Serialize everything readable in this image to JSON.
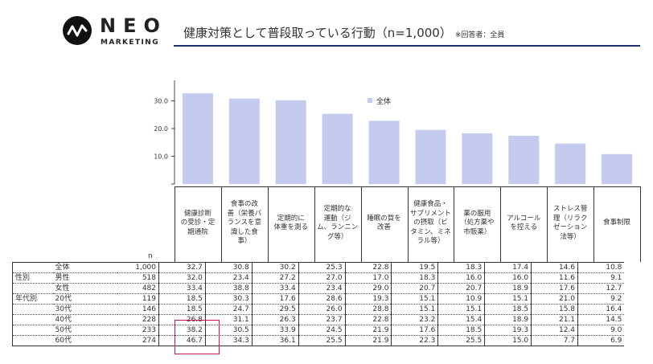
{
  "brand": {
    "name": "NEO",
    "sub": "MARKETING"
  },
  "title": {
    "main": "健康対策として普段取っている行動（n=1,000）",
    "note": "※回答者：全員"
  },
  "colors": {
    "bar": "#c5cbef",
    "highlight": "#c2185b",
    "rule": "#1f2f6f"
  },
  "chart_data": {
    "type": "bar",
    "categories": [
      "健康診断の受診・定期通院",
      "食事の改善（栄養バランスを意識した食事）",
      "定期的に体重を測る",
      "定期的な運動（ジム、ランニング等）",
      "睡眠の質を改善",
      "健康食品・サプリメントの摂取（ビタミン、ミネラル等）",
      "薬の服用（処方薬や市販薬）",
      "アルコールを控える",
      "ストレス管理（リラクゼーション法等）",
      "食事制限"
    ],
    "series": [
      {
        "name": "全体",
        "values": [
          32.7,
          30.8,
          30.2,
          25.3,
          22.8,
          19.5,
          18.3,
          17.4,
          14.6,
          10.8
        ]
      }
    ],
    "yticks": [
      "0.0",
      "10.0",
      "20.0",
      "30.0"
    ],
    "ylim": [
      0,
      35
    ],
    "legend": "全体",
    "legend_position": "top-right"
  },
  "column_labels": [
    "健康診断\nの受診・定\n期通院",
    "食事の改\n善（栄養バ\nランスを意\n識した食\n事）",
    "定期的に\n体重を測る",
    "定期的な\n運動（ジ\nム、ランニン\nグ等）",
    "睡眠の質を\n改善",
    "健康食品・\nサプリメント\nの摂取（ビ\nタミン、ミネ\nラル等）",
    "薬の服用\n（処方薬や\n市販薬）",
    "アルコール\nを控える",
    "ストレス管\n理（リラク\nゼーション\n法等）",
    "食事制限"
  ],
  "n_header": "n",
  "table": {
    "rows": [
      {
        "group": "",
        "label": "全体",
        "n": "1,000",
        "values": [
          "32.7",
          "30.8",
          "30.2",
          "25.3",
          "22.8",
          "19.5",
          "18.3",
          "17.4",
          "14.6",
          "10.8"
        ]
      },
      {
        "group": "性別",
        "label": "男性",
        "n": "518",
        "values": [
          "32.0",
          "23.4",
          "27.2",
          "27.0",
          "17.0",
          "18.3",
          "16.0",
          "16.0",
          "11.6",
          "9.1"
        ]
      },
      {
        "group": "",
        "label": "女性",
        "n": "482",
        "values": [
          "33.4",
          "38.8",
          "33.4",
          "23.4",
          "29.0",
          "20.7",
          "20.7",
          "18.9",
          "17.6",
          "12.7"
        ]
      },
      {
        "group": "年代別",
        "label": "20代",
        "n": "119",
        "values": [
          "18.5",
          "30.3",
          "17.6",
          "28.6",
          "19.3",
          "15.1",
          "10.9",
          "15.1",
          "21.0",
          "9.2"
        ]
      },
      {
        "group": "",
        "label": "30代",
        "n": "146",
        "values": [
          "18.5",
          "24.7",
          "29.5",
          "26.0",
          "28.8",
          "15.1",
          "15.1",
          "18.5",
          "15.8",
          "16.4"
        ]
      },
      {
        "group": "",
        "label": "40代",
        "n": "228",
        "values": [
          "26.8",
          "31.1",
          "26.3",
          "23.7",
          "22.8",
          "23.2",
          "15.4",
          "18.9",
          "21.1",
          "14.5"
        ]
      },
      {
        "group": "",
        "label": "50代",
        "n": "233",
        "values": [
          "38.2",
          "30.5",
          "33.9",
          "24.5",
          "21.9",
          "17.6",
          "18.5",
          "19.3",
          "12.4",
          "9.0"
        ]
      },
      {
        "group": "",
        "label": "60代",
        "n": "274",
        "values": [
          "46.7",
          "34.3",
          "36.1",
          "25.5",
          "21.9",
          "22.3",
          "25.5",
          "15.0",
          "7.7",
          "6.9"
        ]
      }
    ]
  }
}
